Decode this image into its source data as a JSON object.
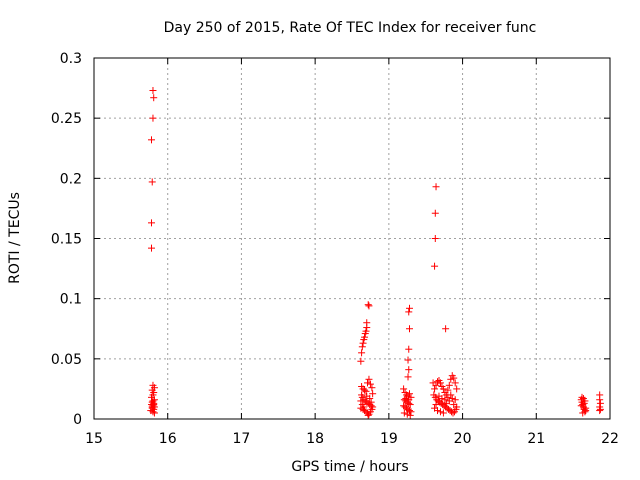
{
  "chart_data": {
    "type": "scatter",
    "title": "Day 250 of 2015, Rate Of TEC Index for receiver func",
    "xlabel": "GPS time / hours",
    "ylabel": "ROTI / TECUs",
    "xlim": [
      15,
      22
    ],
    "ylim": [
      0,
      0.3
    ],
    "x_ticks": [
      "15",
      "16",
      "17",
      "18",
      "19",
      "20",
      "21",
      "22"
    ],
    "y_ticks": [
      "0",
      "0.05",
      "0.1",
      "0.15",
      "0.2",
      "0.25",
      "0.3"
    ],
    "grid": true,
    "legend": "none",
    "marker": "+",
    "color": "#ff0000",
    "series": [
      {
        "points": [
          [
            15.8,
            0.273
          ],
          [
            15.81,
            0.267
          ],
          [
            15.8,
            0.25
          ],
          [
            15.78,
            0.232
          ],
          [
            15.79,
            0.197
          ],
          [
            15.78,
            0.163
          ],
          [
            15.78,
            0.142
          ],
          [
            15.8,
            0.028
          ],
          [
            15.82,
            0.026
          ],
          [
            15.79,
            0.024
          ],
          [
            15.81,
            0.022
          ],
          [
            15.8,
            0.02
          ],
          [
            15.78,
            0.018
          ],
          [
            15.82,
            0.016
          ],
          [
            15.8,
            0.015
          ],
          [
            15.79,
            0.014
          ],
          [
            15.81,
            0.013
          ],
          [
            15.78,
            0.012
          ],
          [
            15.8,
            0.011
          ],
          [
            15.82,
            0.01
          ],
          [
            15.79,
            0.009
          ],
          [
            15.81,
            0.008
          ],
          [
            15.77,
            0.007
          ],
          [
            15.8,
            0.006
          ],
          [
            15.82,
            0.005
          ],
          [
            15.79,
            0.01
          ],
          [
            15.81,
            0.012
          ],
          [
            18.62,
            0.048
          ],
          [
            18.63,
            0.055
          ],
          [
            18.64,
            0.06
          ],
          [
            18.65,
            0.063
          ],
          [
            18.66,
            0.066
          ],
          [
            18.67,
            0.068
          ],
          [
            18.68,
            0.071
          ],
          [
            18.69,
            0.073
          ],
          [
            18.7,
            0.076
          ],
          [
            18.7,
            0.08
          ],
          [
            18.72,
            0.095
          ],
          [
            18.73,
            0.094
          ],
          [
            18.63,
            0.027
          ],
          [
            18.65,
            0.025
          ],
          [
            18.67,
            0.024
          ],
          [
            18.69,
            0.023
          ],
          [
            18.71,
            0.03
          ],
          [
            18.73,
            0.033
          ],
          [
            18.75,
            0.029
          ],
          [
            18.77,
            0.026
          ],
          [
            18.63,
            0.02
          ],
          [
            18.64,
            0.018
          ],
          [
            18.66,
            0.016
          ],
          [
            18.68,
            0.015
          ],
          [
            18.7,
            0.014
          ],
          [
            18.72,
            0.013
          ],
          [
            18.74,
            0.012
          ],
          [
            18.76,
            0.011
          ],
          [
            18.78,
            0.01
          ],
          [
            18.62,
            0.009
          ],
          [
            18.65,
            0.008
          ],
          [
            18.67,
            0.007
          ],
          [
            18.69,
            0.006
          ],
          [
            18.71,
            0.005
          ],
          [
            18.73,
            0.004
          ],
          [
            18.75,
            0.006
          ],
          [
            18.77,
            0.008
          ],
          [
            18.64,
            0.012
          ],
          [
            18.66,
            0.01
          ],
          [
            18.7,
            0.019
          ],
          [
            18.74,
            0.017
          ],
          [
            18.78,
            0.021
          ],
          [
            18.62,
            0.015
          ],
          [
            18.76,
            0.014
          ],
          [
            18.72,
            0.003
          ],
          [
            19.28,
            0.092
          ],
          [
            19.27,
            0.089
          ],
          [
            19.28,
            0.075
          ],
          [
            19.27,
            0.058
          ],
          [
            19.26,
            0.049
          ],
          [
            19.27,
            0.041
          ],
          [
            19.26,
            0.035
          ],
          [
            19.2,
            0.025
          ],
          [
            19.22,
            0.022
          ],
          [
            19.24,
            0.02
          ],
          [
            19.26,
            0.019
          ],
          [
            19.28,
            0.021
          ],
          [
            19.3,
            0.018
          ],
          [
            19.21,
            0.016
          ],
          [
            19.23,
            0.015
          ],
          [
            19.25,
            0.014
          ],
          [
            19.27,
            0.013
          ],
          [
            19.29,
            0.012
          ],
          [
            19.2,
            0.011
          ],
          [
            19.22,
            0.01
          ],
          [
            19.24,
            0.009
          ],
          [
            19.26,
            0.008
          ],
          [
            19.28,
            0.007
          ],
          [
            19.3,
            0.006
          ],
          [
            19.21,
            0.005
          ],
          [
            19.25,
            0.004
          ],
          [
            19.29,
            0.003
          ],
          [
            19.23,
            0.017
          ],
          [
            19.27,
            0.016
          ],
          [
            19.64,
            0.193
          ],
          [
            19.63,
            0.171
          ],
          [
            19.63,
            0.15
          ],
          [
            19.62,
            0.127
          ],
          [
            19.77,
            0.075
          ],
          [
            19.6,
            0.03
          ],
          [
            19.62,
            0.025
          ],
          [
            19.64,
            0.028
          ],
          [
            19.66,
            0.031
          ],
          [
            19.68,
            0.032
          ],
          [
            19.7,
            0.03
          ],
          [
            19.72,
            0.027
          ],
          [
            19.74,
            0.025
          ],
          [
            19.76,
            0.022
          ],
          [
            19.78,
            0.02
          ],
          [
            19.8,
            0.024
          ],
          [
            19.82,
            0.028
          ],
          [
            19.84,
            0.033
          ],
          [
            19.86,
            0.036
          ],
          [
            19.88,
            0.034
          ],
          [
            19.9,
            0.03
          ],
          [
            19.92,
            0.025
          ],
          [
            19.61,
            0.02
          ],
          [
            19.63,
            0.018
          ],
          [
            19.65,
            0.016
          ],
          [
            19.67,
            0.015
          ],
          [
            19.69,
            0.014
          ],
          [
            19.71,
            0.013
          ],
          [
            19.73,
            0.012
          ],
          [
            19.75,
            0.011
          ],
          [
            19.77,
            0.01
          ],
          [
            19.79,
            0.009
          ],
          [
            19.81,
            0.008
          ],
          [
            19.83,
            0.007
          ],
          [
            19.85,
            0.006
          ],
          [
            19.87,
            0.005
          ],
          [
            19.89,
            0.006
          ],
          [
            19.91,
            0.008
          ],
          [
            19.62,
            0.009
          ],
          [
            19.66,
            0.007
          ],
          [
            19.7,
            0.006
          ],
          [
            19.74,
            0.005
          ],
          [
            19.78,
            0.013
          ],
          [
            19.82,
            0.015
          ],
          [
            19.86,
            0.017
          ],
          [
            19.9,
            0.016
          ],
          [
            19.64,
            0.012
          ],
          [
            19.68,
            0.019
          ],
          [
            19.72,
            0.017
          ],
          [
            19.76,
            0.016
          ],
          [
            19.8,
            0.018
          ],
          [
            19.84,
            0.02
          ],
          [
            19.88,
            0.012
          ],
          [
            19.92,
            0.01
          ],
          [
            21.61,
            0.016
          ],
          [
            21.62,
            0.014
          ],
          [
            21.63,
            0.012
          ],
          [
            21.64,
            0.01
          ],
          [
            21.65,
            0.008
          ],
          [
            21.66,
            0.006
          ],
          [
            21.67,
            0.009
          ],
          [
            21.62,
            0.018
          ],
          [
            21.64,
            0.017
          ],
          [
            21.66,
            0.015
          ],
          [
            21.63,
            0.005
          ],
          [
            21.65,
            0.013
          ],
          [
            21.61,
            0.011
          ],
          [
            21.67,
            0.007
          ],
          [
            21.86,
            0.02
          ],
          [
            21.86,
            0.016
          ],
          [
            21.87,
            0.013
          ],
          [
            21.86,
            0.01
          ],
          [
            21.87,
            0.008
          ],
          [
            21.86,
            0.007
          ]
        ]
      }
    ]
  }
}
